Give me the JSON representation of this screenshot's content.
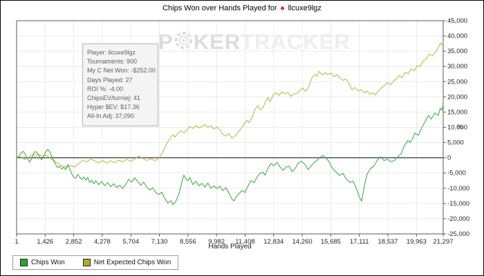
{
  "header": {
    "title_prefix": "Chips Won over Hands Played for",
    "title_icon": "pokerstars-red-spade",
    "player_name": "llcuxe9lgz"
  },
  "watermark": {
    "part1": "P",
    "part2": "KER",
    "part3": "TRACKER",
    "chip_icon": "poker-chip-icon"
  },
  "info_box": {
    "lines": [
      "Player: llcuxe9lgz",
      "Tournaments: 900",
      "My C Net Won: -$252.00",
      "Days Played: 27",
      "ROI %: -4.00",
      "ChipsEV/turniej: 41",
      "Hyper $EV: $17.36",
      "All-In Adj: 37,090"
    ]
  },
  "legend": {
    "items": [
      {
        "label": "Chips Won",
        "color": "#2ea235"
      },
      {
        "label": "Net Expected Chips Won",
        "color": "#b3a92e"
      }
    ]
  },
  "colors": {
    "green_line": "#44ac49",
    "yellow_line": "#c1b84f",
    "zero_line": "#3a3a3a",
    "plot_border": "#5a5a5a",
    "gridline": "#e9e9e9",
    "tick_text": "#262626"
  },
  "chart_data": {
    "type": "line",
    "title": "Chips Won over Hands Played for llcuxe9lgz",
    "xlabel": "Hands Played",
    "ylabel": "%",
    "xlim": [
      1,
      21297
    ],
    "ylim": [
      -25000,
      45000
    ],
    "grid": true,
    "legend_position": "bottom-left",
    "x_ticks": [
      1,
      1426,
      2852,
      4278,
      5704,
      7130,
      8556,
      9982,
      11408,
      12834,
      14260,
      15685,
      17111,
      18537,
      19963,
      21297
    ],
    "y_ticks": [
      45000,
      40000,
      35000,
      30000,
      25000,
      20000,
      15000,
      10000,
      5000,
      0,
      -5000,
      -10000,
      -15000,
      -20000,
      -25000
    ],
    "series": [
      {
        "name": "Net Expected Chips Won",
        "color": "#c1b84f",
        "points": [
          [
            1,
            0
          ],
          [
            200,
            400
          ],
          [
            400,
            -600
          ],
          [
            600,
            200
          ],
          [
            800,
            1200
          ],
          [
            950,
            700
          ],
          [
            1100,
            1200
          ],
          [
            1300,
            400
          ],
          [
            1500,
            900
          ],
          [
            1700,
            -300
          ],
          [
            1900,
            -1100
          ],
          [
            2100,
            -2000
          ],
          [
            2300,
            -2800
          ],
          [
            2500,
            -3100
          ],
          [
            2700,
            -2500
          ],
          [
            2900,
            -3000
          ],
          [
            3100,
            -1900
          ],
          [
            3300,
            -800
          ],
          [
            3500,
            -1400
          ],
          [
            3700,
            -400
          ],
          [
            3900,
            -1000
          ],
          [
            4100,
            -1600
          ],
          [
            4300,
            -900
          ],
          [
            4500,
            -1700
          ],
          [
            4700,
            -1000
          ],
          [
            4900,
            -1600
          ],
          [
            5100,
            -800
          ],
          [
            5300,
            -1300
          ],
          [
            5500,
            -500
          ],
          [
            5700,
            -1200
          ],
          [
            5900,
            -400
          ],
          [
            6100,
            600
          ],
          [
            6300,
            -200
          ],
          [
            6500,
            -900
          ],
          [
            6700,
            -300
          ],
          [
            6900,
            -900
          ],
          [
            7050,
            -500
          ],
          [
            7200,
            800
          ],
          [
            7350,
            2600
          ],
          [
            7500,
            4600
          ],
          [
            7650,
            6400
          ],
          [
            7800,
            7500
          ],
          [
            7900,
            6800
          ],
          [
            8050,
            8000
          ],
          [
            8200,
            8900
          ],
          [
            8350,
            8200
          ],
          [
            8500,
            9100
          ],
          [
            8650,
            10300
          ],
          [
            8800,
            9600
          ],
          [
            8950,
            10600
          ],
          [
            9100,
            9800
          ],
          [
            9250,
            10200
          ],
          [
            9400,
            10900
          ],
          [
            9550,
            10000
          ],
          [
            9700,
            10500
          ],
          [
            9850,
            9400
          ],
          [
            10000,
            10100
          ],
          [
            10150,
            9200
          ],
          [
            10300,
            7700
          ],
          [
            10450,
            7100
          ],
          [
            10600,
            7900
          ],
          [
            10750,
            6500
          ],
          [
            10900,
            7000
          ],
          [
            11050,
            8400
          ],
          [
            11200,
            9500
          ],
          [
            11350,
            10900
          ],
          [
            11500,
            12300
          ],
          [
            11600,
            11500
          ],
          [
            11750,
            13100
          ],
          [
            11900,
            15900
          ],
          [
            12050,
            17100
          ],
          [
            12150,
            15800
          ],
          [
            12300,
            16400
          ],
          [
            12450,
            18700
          ],
          [
            12550,
            19800
          ],
          [
            12650,
            18400
          ],
          [
            12800,
            20500
          ],
          [
            12950,
            21300
          ],
          [
            13100,
            20500
          ],
          [
            13250,
            21700
          ],
          [
            13400,
            21000
          ],
          [
            13550,
            21400
          ],
          [
            13700,
            20200
          ],
          [
            13850,
            21000
          ],
          [
            14000,
            21100
          ],
          [
            14150,
            22200
          ],
          [
            14300,
            22900
          ],
          [
            14400,
            21800
          ],
          [
            14550,
            22900
          ],
          [
            14750,
            26300
          ],
          [
            14900,
            27400
          ],
          [
            15000,
            26700
          ],
          [
            15100,
            28400
          ],
          [
            15250,
            27200
          ],
          [
            15400,
            27900
          ],
          [
            15550,
            27300
          ],
          [
            15700,
            27800
          ],
          [
            15850,
            26600
          ],
          [
            16000,
            27300
          ],
          [
            16150,
            26200
          ],
          [
            16300,
            25400
          ],
          [
            16450,
            25900
          ],
          [
            16600,
            24300
          ],
          [
            16750,
            22300
          ],
          [
            16900,
            23100
          ],
          [
            17050,
            21900
          ],
          [
            17200,
            22400
          ],
          [
            17350,
            21300
          ],
          [
            17500,
            21900
          ],
          [
            17650,
            20800
          ],
          [
            17800,
            21400
          ],
          [
            17900,
            20600
          ],
          [
            18050,
            21900
          ],
          [
            18200,
            22900
          ],
          [
            18350,
            23600
          ],
          [
            18500,
            24700
          ],
          [
            18650,
            24000
          ],
          [
            18800,
            25000
          ],
          [
            18950,
            25900
          ],
          [
            19100,
            27000
          ],
          [
            19250,
            26300
          ],
          [
            19400,
            28100
          ],
          [
            19550,
            27600
          ],
          [
            19700,
            29200
          ],
          [
            19850,
            28500
          ],
          [
            20000,
            30300
          ],
          [
            20150,
            30000
          ],
          [
            20300,
            31800
          ],
          [
            20450,
            32500
          ],
          [
            20600,
            34100
          ],
          [
            20750,
            33400
          ],
          [
            20900,
            34600
          ],
          [
            21050,
            36100
          ],
          [
            21150,
            37700
          ],
          [
            21220,
            37000
          ],
          [
            21297,
            37700
          ]
        ]
      },
      {
        "name": "Chips Won",
        "color": "#44ac49",
        "points": [
          [
            1,
            0
          ],
          [
            120,
            700
          ],
          [
            250,
            1700
          ],
          [
            350,
            2100
          ],
          [
            450,
            900
          ],
          [
            550,
            -400
          ],
          [
            650,
            -1400
          ],
          [
            750,
            -300
          ],
          [
            850,
            1400
          ],
          [
            950,
            2100
          ],
          [
            1050,
            1300
          ],
          [
            1150,
            300
          ],
          [
            1250,
            -700
          ],
          [
            1350,
            600
          ],
          [
            1450,
            1900
          ],
          [
            1550,
            2800
          ],
          [
            1650,
            2000
          ],
          [
            1750,
            600
          ],
          [
            1850,
            -900
          ],
          [
            1950,
            -2200
          ],
          [
            2050,
            -3300
          ],
          [
            2150,
            -2700
          ],
          [
            2250,
            -3700
          ],
          [
            2350,
            -3100
          ],
          [
            2450,
            -3900
          ],
          [
            2550,
            -2200
          ],
          [
            2650,
            -3600
          ],
          [
            2750,
            -5200
          ],
          [
            2850,
            -6400
          ],
          [
            2950,
            -6700
          ],
          [
            3050,
            -5500
          ],
          [
            3150,
            -6300
          ],
          [
            3250,
            -7100
          ],
          [
            3350,
            -6300
          ],
          [
            3450,
            -7300
          ],
          [
            3550,
            -6400
          ],
          [
            3650,
            -8200
          ],
          [
            3750,
            -7300
          ],
          [
            3850,
            -8600
          ],
          [
            3950,
            -7500
          ],
          [
            4100,
            -8800
          ],
          [
            4250,
            -7800
          ],
          [
            4400,
            -9200
          ],
          [
            4550,
            -8200
          ],
          [
            4700,
            -9500
          ],
          [
            4850,
            -8500
          ],
          [
            5000,
            -9800
          ],
          [
            5150,
            -9000
          ],
          [
            5300,
            -10100
          ],
          [
            5450,
            -8700
          ],
          [
            5600,
            -7100
          ],
          [
            5750,
            -8000
          ],
          [
            5900,
            -6600
          ],
          [
            6050,
            -7800
          ],
          [
            6200,
            -9000
          ],
          [
            6350,
            -8000
          ],
          [
            6500,
            -9700
          ],
          [
            6650,
            -10600
          ],
          [
            6800,
            -9800
          ],
          [
            6950,
            -11400
          ],
          [
            7100,
            -12100
          ],
          [
            7250,
            -11300
          ],
          [
            7400,
            -13400
          ],
          [
            7550,
            -14800
          ],
          [
            7700,
            -14100
          ],
          [
            7800,
            -15400
          ],
          [
            7950,
            -14300
          ],
          [
            8100,
            -12000
          ],
          [
            8250,
            -8000
          ],
          [
            8350,
            -5700
          ],
          [
            8450,
            -7000
          ],
          [
            8550,
            -7500
          ],
          [
            8650,
            -6500
          ],
          [
            8800,
            -8800
          ],
          [
            8950,
            -7700
          ],
          [
            9100,
            -9200
          ],
          [
            9250,
            -8400
          ],
          [
            9400,
            -9600
          ],
          [
            9550,
            -8300
          ],
          [
            9700,
            -10000
          ],
          [
            9850,
            -9200
          ],
          [
            10000,
            -10100
          ],
          [
            10150,
            -9400
          ],
          [
            10300,
            -10800
          ],
          [
            10450,
            -9800
          ],
          [
            10600,
            -11600
          ],
          [
            10750,
            -13500
          ],
          [
            10850,
            -14200
          ],
          [
            10950,
            -12900
          ],
          [
            11100,
            -11900
          ],
          [
            11250,
            -10700
          ],
          [
            11400,
            -11400
          ],
          [
            11550,
            -9300
          ],
          [
            11700,
            -7500
          ],
          [
            11850,
            -8200
          ],
          [
            12000,
            -6400
          ],
          [
            12150,
            -5100
          ],
          [
            12300,
            -4800
          ],
          [
            12400,
            -5700
          ],
          [
            12550,
            -3400
          ],
          [
            12700,
            -1900
          ],
          [
            12850,
            -2600
          ],
          [
            13000,
            -1500
          ],
          [
            13150,
            -3000
          ],
          [
            13300,
            -4100
          ],
          [
            13450,
            -3100
          ],
          [
            13600,
            -2700
          ],
          [
            13750,
            -4600
          ],
          [
            13900,
            -3600
          ],
          [
            14050,
            -1900
          ],
          [
            14200,
            -1100
          ],
          [
            14390,
            -2100
          ],
          [
            14550,
            -3900
          ],
          [
            14700,
            -2700
          ],
          [
            14850,
            -1600
          ],
          [
            15000,
            -800
          ],
          [
            15150,
            100
          ],
          [
            15300,
            800
          ],
          [
            15450,
            -100
          ],
          [
            15600,
            -1300
          ],
          [
            15770,
            -3500
          ],
          [
            15950,
            -4700
          ],
          [
            16120,
            -5800
          ],
          [
            16290,
            -5100
          ],
          [
            16460,
            -7000
          ],
          [
            16630,
            -8100
          ],
          [
            16800,
            -7700
          ],
          [
            16970,
            -10100
          ],
          [
            17100,
            -12600
          ],
          [
            17220,
            -14300
          ],
          [
            17350,
            -9600
          ],
          [
            17490,
            -5500
          ],
          [
            17660,
            -3600
          ],
          [
            17830,
            -2800
          ],
          [
            18000,
            -900
          ],
          [
            18170,
            300
          ],
          [
            18340,
            -900
          ],
          [
            18510,
            -500
          ],
          [
            18680,
            -1300
          ],
          [
            18860,
            -900
          ],
          [
            19030,
            300
          ],
          [
            19200,
            1400
          ],
          [
            19370,
            4100
          ],
          [
            19540,
            5700
          ],
          [
            19640,
            5000
          ],
          [
            19780,
            6400
          ],
          [
            19880,
            8100
          ],
          [
            20050,
            7400
          ],
          [
            20230,
            9900
          ],
          [
            20400,
            12000
          ],
          [
            20570,
            13900
          ],
          [
            20700,
            12700
          ],
          [
            20880,
            14700
          ],
          [
            21050,
            13900
          ],
          [
            21150,
            16300
          ],
          [
            21230,
            15600
          ],
          [
            21297,
            17600
          ]
        ]
      }
    ]
  }
}
